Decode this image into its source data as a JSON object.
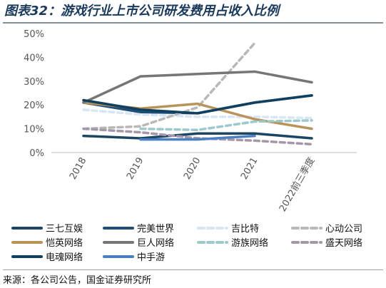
{
  "title": "图表32：游戏行业上市公司研发费用占收入比例",
  "footer": "来源：各公司公告，国金证券研究所",
  "chart_data": {
    "type": "line",
    "categories": [
      "2018",
      "2019",
      "2020",
      "2021",
      "2022前三季度"
    ],
    "ylim": [
      0,
      50
    ],
    "yticks": [
      "0%",
      "10%",
      "20%",
      "30%",
      "40%",
      "50%"
    ],
    "grid": false,
    "legend_position": "bottom",
    "series": [
      {
        "name": "三七互娱",
        "values": [
          7,
          6,
          8,
          8,
          6
        ],
        "color": "#1b4563",
        "style": "solid"
      },
      {
        "name": "完美世界",
        "values": [
          21,
          17,
          16.5,
          21,
          24
        ],
        "color": "#1f4e79",
        "style": "solid"
      },
      {
        "name": "吉比特",
        "values": [
          18,
          16,
          15,
          15,
          14.5
        ],
        "color": "#d6e6f3",
        "style": "dash"
      },
      {
        "name": "心动公司",
        "values": [
          10,
          11,
          19,
          46,
          null
        ],
        "color": "#b8b8b8",
        "style": "dash"
      },
      {
        "name": "恺英网络",
        "values": [
          21,
          18.5,
          20.5,
          14,
          10
        ],
        "color": "#b8935a",
        "style": "solid"
      },
      {
        "name": "巨人网络",
        "values": [
          21,
          32,
          33,
          34,
          29.5
        ],
        "color": "#767676",
        "style": "solid"
      },
      {
        "name": "游族网络",
        "values": [
          null,
          10,
          9.5,
          13,
          13.5
        ],
        "color": "#9ec9cc",
        "style": "dash"
      },
      {
        "name": "盛天网络",
        "values": [
          10,
          8.5,
          6,
          5,
          3.5
        ],
        "color": "#a597a8",
        "style": "dash"
      },
      {
        "name": "电魂网络",
        "values": [
          22,
          18,
          16.5,
          21,
          24
        ],
        "color": "#10405e",
        "style": "solid"
      },
      {
        "name": "中手游",
        "values": [
          null,
          5.5,
          5.5,
          7,
          null
        ],
        "color": "#4a80c2",
        "style": "solid"
      }
    ]
  }
}
